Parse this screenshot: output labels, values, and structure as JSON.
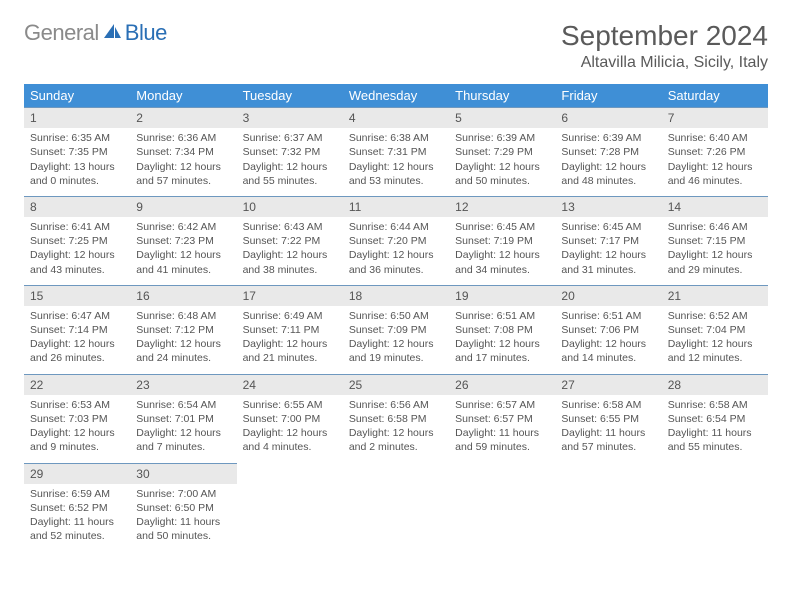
{
  "logo": {
    "part1": "General",
    "part2": "Blue"
  },
  "title": "September 2024",
  "location": "Altavilla Milicia, Sicily, Italy",
  "colors": {
    "header_bg": "#3f8fd6",
    "header_text": "#ffffff",
    "week_border": "#6e98bf",
    "daynum_bg": "#e9e9e9",
    "body_text": "#555555",
    "logo_gray": "#8a8a8a",
    "logo_blue": "#2a6fb5"
  },
  "weekdays": [
    "Sunday",
    "Monday",
    "Tuesday",
    "Wednesday",
    "Thursday",
    "Friday",
    "Saturday"
  ],
  "days": [
    {
      "n": "1",
      "sr": "6:35 AM",
      "ss": "7:35 PM",
      "dl": "13 hours and 0 minutes."
    },
    {
      "n": "2",
      "sr": "6:36 AM",
      "ss": "7:34 PM",
      "dl": "12 hours and 57 minutes."
    },
    {
      "n": "3",
      "sr": "6:37 AM",
      "ss": "7:32 PM",
      "dl": "12 hours and 55 minutes."
    },
    {
      "n": "4",
      "sr": "6:38 AM",
      "ss": "7:31 PM",
      "dl": "12 hours and 53 minutes."
    },
    {
      "n": "5",
      "sr": "6:39 AM",
      "ss": "7:29 PM",
      "dl": "12 hours and 50 minutes."
    },
    {
      "n": "6",
      "sr": "6:39 AM",
      "ss": "7:28 PM",
      "dl": "12 hours and 48 minutes."
    },
    {
      "n": "7",
      "sr": "6:40 AM",
      "ss": "7:26 PM",
      "dl": "12 hours and 46 minutes."
    },
    {
      "n": "8",
      "sr": "6:41 AM",
      "ss": "7:25 PM",
      "dl": "12 hours and 43 minutes."
    },
    {
      "n": "9",
      "sr": "6:42 AM",
      "ss": "7:23 PM",
      "dl": "12 hours and 41 minutes."
    },
    {
      "n": "10",
      "sr": "6:43 AM",
      "ss": "7:22 PM",
      "dl": "12 hours and 38 minutes."
    },
    {
      "n": "11",
      "sr": "6:44 AM",
      "ss": "7:20 PM",
      "dl": "12 hours and 36 minutes."
    },
    {
      "n": "12",
      "sr": "6:45 AM",
      "ss": "7:19 PM",
      "dl": "12 hours and 34 minutes."
    },
    {
      "n": "13",
      "sr": "6:45 AM",
      "ss": "7:17 PM",
      "dl": "12 hours and 31 minutes."
    },
    {
      "n": "14",
      "sr": "6:46 AM",
      "ss": "7:15 PM",
      "dl": "12 hours and 29 minutes."
    },
    {
      "n": "15",
      "sr": "6:47 AM",
      "ss": "7:14 PM",
      "dl": "12 hours and 26 minutes."
    },
    {
      "n": "16",
      "sr": "6:48 AM",
      "ss": "7:12 PM",
      "dl": "12 hours and 24 minutes."
    },
    {
      "n": "17",
      "sr": "6:49 AM",
      "ss": "7:11 PM",
      "dl": "12 hours and 21 minutes."
    },
    {
      "n": "18",
      "sr": "6:50 AM",
      "ss": "7:09 PM",
      "dl": "12 hours and 19 minutes."
    },
    {
      "n": "19",
      "sr": "6:51 AM",
      "ss": "7:08 PM",
      "dl": "12 hours and 17 minutes."
    },
    {
      "n": "20",
      "sr": "6:51 AM",
      "ss": "7:06 PM",
      "dl": "12 hours and 14 minutes."
    },
    {
      "n": "21",
      "sr": "6:52 AM",
      "ss": "7:04 PM",
      "dl": "12 hours and 12 minutes."
    },
    {
      "n": "22",
      "sr": "6:53 AM",
      "ss": "7:03 PM",
      "dl": "12 hours and 9 minutes."
    },
    {
      "n": "23",
      "sr": "6:54 AM",
      "ss": "7:01 PM",
      "dl": "12 hours and 7 minutes."
    },
    {
      "n": "24",
      "sr": "6:55 AM",
      "ss": "7:00 PM",
      "dl": "12 hours and 4 minutes."
    },
    {
      "n": "25",
      "sr": "6:56 AM",
      "ss": "6:58 PM",
      "dl": "12 hours and 2 minutes."
    },
    {
      "n": "26",
      "sr": "6:57 AM",
      "ss": "6:57 PM",
      "dl": "11 hours and 59 minutes."
    },
    {
      "n": "27",
      "sr": "6:58 AM",
      "ss": "6:55 PM",
      "dl": "11 hours and 57 minutes."
    },
    {
      "n": "28",
      "sr": "6:58 AM",
      "ss": "6:54 PM",
      "dl": "11 hours and 55 minutes."
    },
    {
      "n": "29",
      "sr": "6:59 AM",
      "ss": "6:52 PM",
      "dl": "11 hours and 52 minutes."
    },
    {
      "n": "30",
      "sr": "7:00 AM",
      "ss": "6:50 PM",
      "dl": "11 hours and 50 minutes."
    }
  ],
  "labels": {
    "sunrise": "Sunrise:",
    "sunset": "Sunset:",
    "daylight": "Daylight:"
  }
}
